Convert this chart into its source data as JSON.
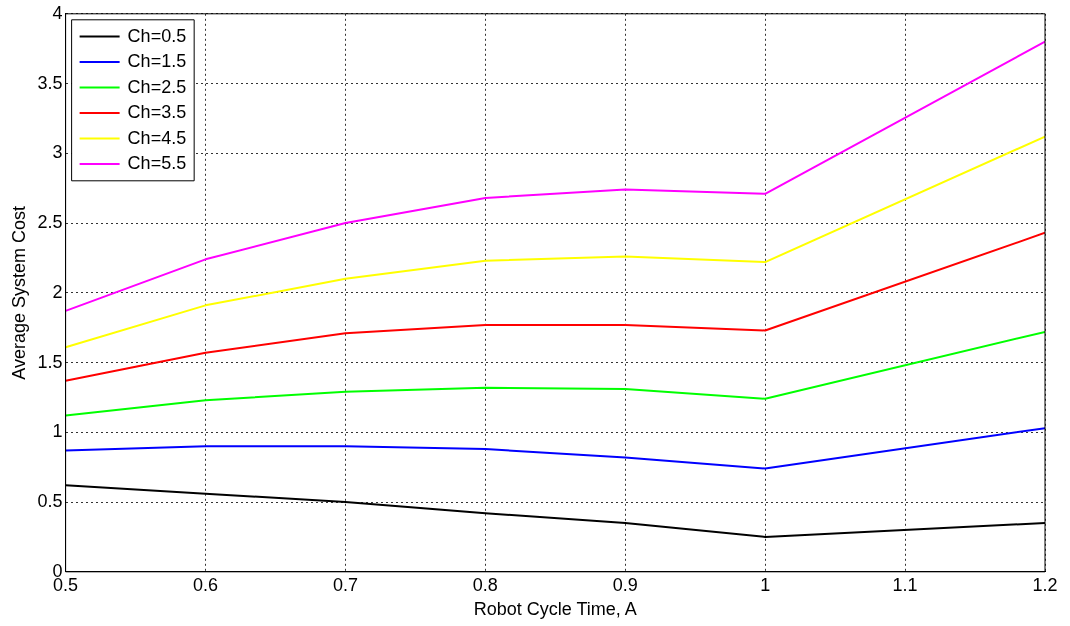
{
  "chart_data": {
    "type": "line",
    "xlabel": "Robot Cycle Time, A",
    "ylabel": "Average System Cost",
    "x": [
      0.5,
      0.6,
      0.7,
      0.8,
      0.9,
      1.0,
      1.2
    ],
    "series": [
      {
        "name": "Ch=0.5",
        "color": "#000000",
        "values": [
          0.62,
          0.56,
          0.5,
          0.42,
          0.35,
          0.25,
          0.35
        ]
      },
      {
        "name": "Ch=1.5",
        "color": "#0000ff",
        "values": [
          0.87,
          0.9,
          0.9,
          0.88,
          0.82,
          0.74,
          1.03
        ]
      },
      {
        "name": "Ch=2.5",
        "color": "#00ff00",
        "values": [
          1.12,
          1.23,
          1.29,
          1.32,
          1.31,
          1.24,
          1.72
        ]
      },
      {
        "name": "Ch=3.5",
        "color": "#ff0000",
        "values": [
          1.37,
          1.57,
          1.71,
          1.77,
          1.77,
          1.73,
          2.43
        ]
      },
      {
        "name": "Ch=4.5",
        "color": "#ffff00",
        "values": [
          1.61,
          1.91,
          2.1,
          2.23,
          2.26,
          2.22,
          3.12
        ]
      },
      {
        "name": "Ch=5.5",
        "color": "#ff00ff",
        "values": [
          1.87,
          2.24,
          2.5,
          2.68,
          2.74,
          2.71,
          3.8
        ]
      }
    ],
    "xlim": [
      0.5,
      1.2
    ],
    "xticks": [
      0.5,
      0.6,
      0.7,
      0.8,
      0.9,
      1,
      1.1,
      1.2
    ],
    "ylim": [
      0,
      4
    ],
    "yticks": [
      0,
      0.5,
      1,
      1.5,
      2,
      2.5,
      3,
      3.5,
      4
    ],
    "grid": true,
    "legend": "top left",
    "marker": "none",
    "line_style": "solid"
  }
}
